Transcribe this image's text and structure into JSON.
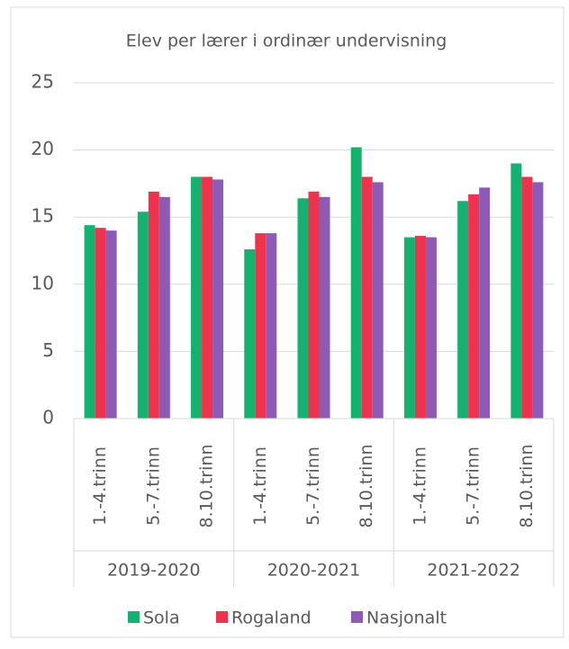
{
  "chart_data": {
    "type": "bar",
    "title": "Elev per lærer i ordinær undervisning",
    "categories": [
      "1.-4.trinn",
      "5.-7.trinn",
      "8.10.trinn",
      "1.-4.trinn",
      "5.-7.trinn",
      "8.10.trinn",
      "1.-4.trinn",
      "5.-7.trinn",
      "8.10.trinn"
    ],
    "category_groups": [
      "2019-2020",
      "2020-2021",
      "2021-2022"
    ],
    "series": [
      {
        "name": "Sola",
        "color": "#13b26f",
        "values": [
          14.4,
          15.4,
          18.0,
          12.6,
          16.4,
          20.2,
          13.5,
          16.2,
          19.0
        ]
      },
      {
        "name": "Rogaland",
        "color": "#f0334d",
        "values": [
          14.2,
          16.9,
          18.0,
          13.8,
          16.9,
          18.0,
          13.6,
          16.7,
          18.0
        ]
      },
      {
        "name": "Nasjonalt",
        "color": "#8d5bb6",
        "values": [
          14.0,
          16.5,
          17.8,
          13.8,
          16.5,
          17.6,
          13.5,
          17.2,
          17.6
        ]
      }
    ],
    "ylim": [
      0,
      25
    ],
    "yticks": [
      0,
      5,
      10,
      15,
      20,
      25
    ],
    "grid": true,
    "legend": "bottom"
  }
}
